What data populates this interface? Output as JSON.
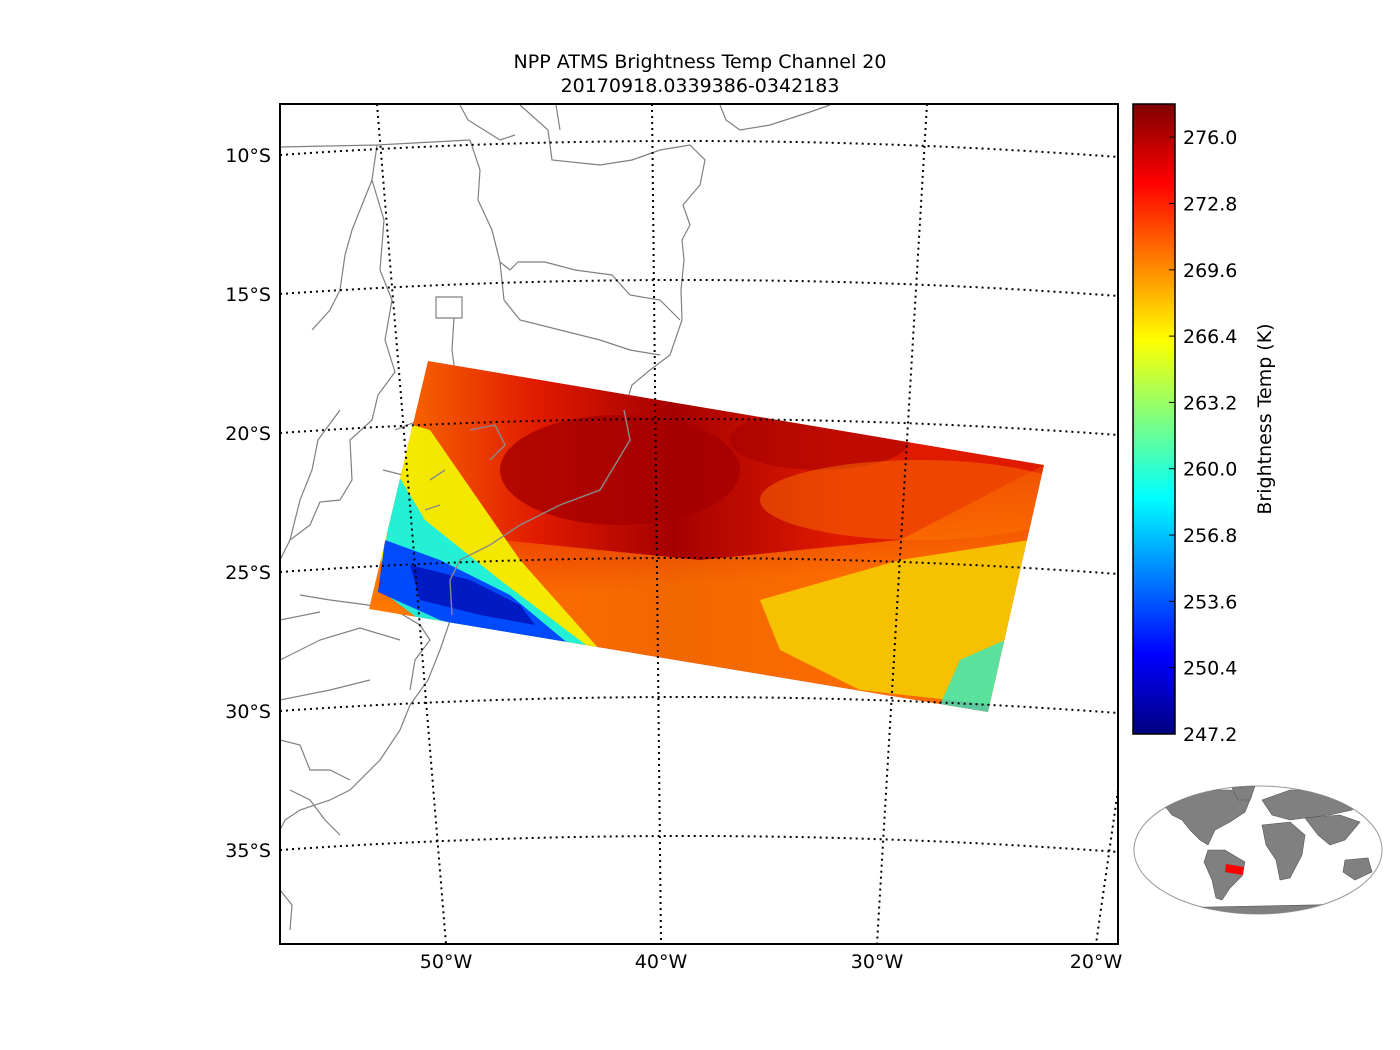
{
  "title": {
    "line1": "NPP ATMS Brightness Temp Channel 20",
    "line2": "20170918.0339386-0342183"
  },
  "map": {
    "lat_labels": [
      "10°S",
      "15°S",
      "20°S",
      "25°S",
      "30°S",
      "35°S"
    ],
    "lon_labels": [
      "50°W",
      "40°W",
      "30°W",
      "20°W"
    ],
    "gridline_style": "dotted",
    "coastline_color": "#808080"
  },
  "colorbar": {
    "label": "Brightness Temp (K)",
    "ticks": [
      "276.0",
      "272.8",
      "269.6",
      "266.4",
      "263.2",
      "260.0",
      "256.8",
      "253.6",
      "250.4",
      "247.2"
    ],
    "min": 247.2,
    "max": 277.6,
    "colormap": "jet",
    "colors": [
      "#00007f",
      "#0000ff",
      "#007fff",
      "#00ffff",
      "#7fff7f",
      "#ffff00",
      "#ff7f00",
      "#ff0000",
      "#7f0000"
    ]
  },
  "swath_colors": {
    "dark_red": "#a50000",
    "red": "#e01a00",
    "orange": "#ff7a00",
    "yellow": "#f4f000",
    "cyan": "#18f0e0",
    "blue": "#0040ff",
    "navy": "#0018c0"
  },
  "inset": {
    "land_color": "#808080",
    "swath_marker_color": "#ff0000"
  }
}
